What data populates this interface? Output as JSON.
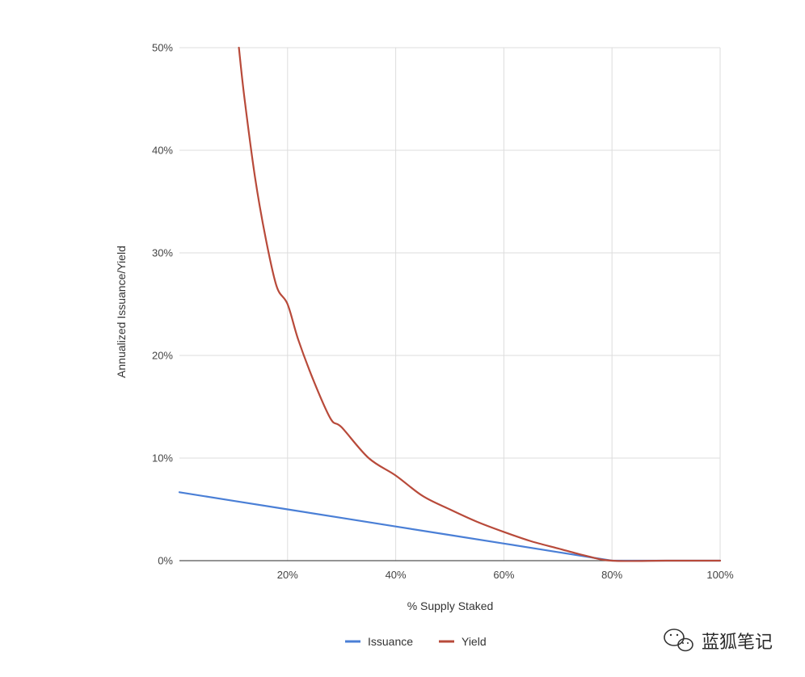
{
  "chart_data": {
    "type": "line",
    "title": "",
    "xlabel": "% Supply Staked",
    "ylabel": "Annualized Issuance/Yield",
    "x_range": [
      0,
      100
    ],
    "y_range": [
      0,
      50
    ],
    "x_ticks": [
      {
        "value": 20,
        "label": "20%"
      },
      {
        "value": 40,
        "label": "40%"
      },
      {
        "value": 60,
        "label": "60%"
      },
      {
        "value": 80,
        "label": "80%"
      },
      {
        "value": 100,
        "label": "100%"
      }
    ],
    "y_ticks": [
      {
        "value": 0,
        "label": "0%"
      },
      {
        "value": 10,
        "label": "10%"
      },
      {
        "value": 20,
        "label": "20%"
      },
      {
        "value": 30,
        "label": "30%"
      },
      {
        "value": 40,
        "label": "40%"
      },
      {
        "value": 50,
        "label": "50%"
      }
    ],
    "grid": true,
    "legend_position": "bottom",
    "series": [
      {
        "name": "Issuance",
        "color": "#4a7fd6",
        "x": [
          0,
          10,
          20,
          30,
          40,
          50,
          60,
          70,
          80,
          90,
          100
        ],
        "y": [
          6.67,
          5.83,
          5.0,
          4.17,
          3.33,
          2.5,
          1.67,
          0.83,
          0,
          0,
          0
        ]
      },
      {
        "name": "Yield",
        "color": "#b84a3a",
        "x": [
          11,
          12,
          14,
          16,
          18,
          20,
          22,
          25,
          28,
          30,
          35,
          40,
          45,
          50,
          55,
          60,
          65,
          70,
          75,
          80,
          90,
          100
        ],
        "y": [
          50,
          45.2,
          37.3,
          31.3,
          26.7,
          25.0,
          21.5,
          17.3,
          13.8,
          13.0,
          10.0,
          8.3,
          6.3,
          5.0,
          3.8,
          2.8,
          1.9,
          1.2,
          0.5,
          0,
          0,
          0
        ]
      }
    ]
  },
  "watermark": {
    "text": "蓝狐笔记",
    "icon": "wechat-icon"
  }
}
